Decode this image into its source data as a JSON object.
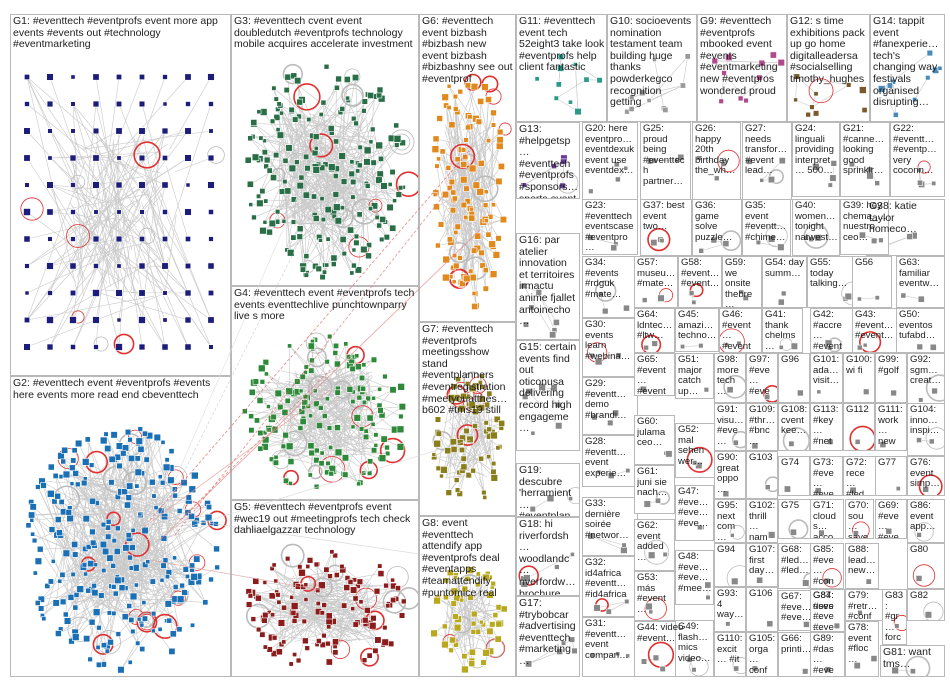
{
  "groups": [
    {
      "id": "G1",
      "label": "G1: #eventtech #eventprofs event more app events #events out #technology #eventmarketing",
      "color": "#1c1c7a"
    },
    {
      "id": "G2",
      "label": "G2: #eventtech event #eventprofs #events here events more read end cbeventtech",
      "color": "#1a6fb5"
    },
    {
      "id": "G3",
      "label": "G3: #eventtech cvent event doubledutch #eventprofs technology mobile acquires accelerate investment",
      "color": "#2a6e48"
    },
    {
      "id": "G4",
      "label": "G4: #eventtech event #eventprofs tech events eventtechlive punchtownparry live s more",
      "color": "#2e8a3a"
    },
    {
      "id": "G5",
      "label": "G5: #eventtech #eventprofs event #wec19 out #meetingprofs tech check dahliaelgazzar technology",
      "color": "#8a1c1c"
    },
    {
      "id": "G6",
      "label": "G6: #eventtech event bizbash #bizbash new event bizbash #bizbashny see out #eventprof",
      "color": "#e08a1e"
    },
    {
      "id": "G7",
      "label": "G7: #eventtech #eventprofs meetingsshow stand #eventplanners #eventregistration #meetyouatthes… b602 #tms19 still",
      "color": "#8a7d1c"
    },
    {
      "id": "G8",
      "label": "G8: event #eventtech attendify app #eventprofs deal #eventapps #teamattendify #puntomice real",
      "color": "#b8a81e"
    },
    {
      "id": "G9",
      "label": "G9: #eventtech #eventprofs mbooked event #events #eventmarketing new #eventpros wondered proud",
      "color": "#b04a8a"
    },
    {
      "id": "G10",
      "label": "G10: socioevents nomination testament team building huge thanks powderkegco recognition getting",
      "color": "#9a9a9a"
    },
    {
      "id": "G11",
      "label": "G11: #eventtech event tech 52eight3 take look #eventprofs help client fantastic",
      "color": "#2a9a8a"
    },
    {
      "id": "G12",
      "label": "G12: s time exhibitions pack up go home digitalleadersa #socialselling timothy_hughes",
      "color": "#7a5a2a"
    },
    {
      "id": "G13",
      "label": "G13: #helpgetsp… #eventtech #eventprofs #sponsors… sports event manage deal…",
      "color": "#6a3a9a"
    },
    {
      "id": "G14",
      "label": "G14: tappit event #fanexperie… tech's changing way festivals organised disrupting…",
      "color": "#4a8ab8"
    },
    {
      "id": "G15",
      "label": "G15: certain events find out oticonusa delivering record high engageme…",
      "color": "#888888"
    },
    {
      "id": "G16",
      "label": "G16: par atelier innovation et territoires irmactu anime fjallet antoinecho…",
      "color": "#888888"
    },
    {
      "id": "G17",
      "label": "G17: #trybobcar #advertising #eventtech #marketing…",
      "color": "#888888"
    },
    {
      "id": "G18",
      "label": "G18: hi riverfordsh… woodlandc… riverfordw… brochure facebook…",
      "color": "#888888"
    },
    {
      "id": "G19",
      "label": "G19: descubre 'herramient… #eventplan… debe…",
      "color": "#888888"
    },
    {
      "id": "G20",
      "label": "G20: here eventpro… eventdexuk event use eventdex…",
      "color": "#888888"
    },
    {
      "id": "G21",
      "label": "G21: #canne… looking good sprinklr…",
      "color": "#888888"
    },
    {
      "id": "G22",
      "label": "G22: #eventt… #eventp… very coconn…",
      "color": "#888888"
    },
    {
      "id": "G23",
      "label": "G23: #eventtech eventscase #eventpro…",
      "color": "#888888"
    },
    {
      "id": "G24",
      "label": "G24: linguali providing interpret… 500…",
      "color": "#888888"
    },
    {
      "id": "G25",
      "label": "G25: proud being #eventtech partner…",
      "color": "#888888"
    },
    {
      "id": "G26",
      "label": "G26: happy 20th birthday the_wh…",
      "color": "#888888"
    },
    {
      "id": "G27",
      "label": "G27: needs transfor… #event lead…",
      "color": "#888888"
    },
    {
      "id": "G28",
      "label": "G28: #eventt… event experie…",
      "color": "#888888"
    },
    {
      "id": "G29",
      "label": "G29: #eventt… demo #brandi…",
      "color": "#888888"
    },
    {
      "id": "G30",
      "label": "G30: events learn #webina…",
      "color": "#888888"
    },
    {
      "id": "G31",
      "label": "G31: #eventt… event compan…",
      "color": "#888888"
    },
    {
      "id": "G32",
      "label": "G32: id4africa #eventt… #id4africa",
      "color": "#888888"
    },
    {
      "id": "G33",
      "label": "G33: dernière soirée #networ…",
      "color": "#888888"
    },
    {
      "id": "G34",
      "label": "G34: #events #rdguk #mate…",
      "color": "#888888"
    },
    {
      "id": "G35",
      "label": "G35: event #eventt… #chime…",
      "color": "#888888"
    },
    {
      "id": "G36",
      "label": "G36: game solve puzzle…",
      "color": "#888888"
    },
    {
      "id": "G37",
      "label": "G37: best event two…",
      "color": "#888888"
    },
    {
      "id": "G38",
      "label": "G38: katie taylor homeco…",
      "color": "#888888"
    },
    {
      "id": "G39",
      "label": "G39: hoy chema_… nuestro ceo…",
      "color": "#888888"
    },
    {
      "id": "G40",
      "label": "G40: women… tonight natwest…",
      "color": "#888888"
    },
    {
      "id": "G41",
      "label": "G41: thank chelms…",
      "color": "#888888"
    },
    {
      "id": "G42",
      "label": "G42: #accre… #event…",
      "color": "#888888"
    },
    {
      "id": "G43",
      "label": "G43: #event… #event…",
      "color": "#888888"
    },
    {
      "id": "G44",
      "label": "G44: video #event…",
      "color": "#888888"
    },
    {
      "id": "G45",
      "label": "G45: amazi… techno…",
      "color": "#888888"
    },
    {
      "id": "G46",
      "label": "G46: #event… #event…",
      "color": "#888888"
    },
    {
      "id": "G47",
      "label": "G47: #eve… #eve… #eve…",
      "color": "#888888"
    },
    {
      "id": "G48",
      "label": "G48: #eve… #eve… #mee…",
      "color": "#888888"
    },
    {
      "id": "G49",
      "label": "G49: flash… mics video…",
      "color": "#888888"
    },
    {
      "id": "G50",
      "label": "G50: eventos tufabd…",
      "color": "#888888"
    },
    {
      "id": "G51",
      "label": "G51: major catch up…",
      "color": "#888888"
    },
    {
      "id": "G52",
      "label": "G52: mal sehen wer…",
      "color": "#888888"
    },
    {
      "id": "G53",
      "label": "G53: más #event…",
      "color": "#888888"
    },
    {
      "id": "G54",
      "label": "G54: day summ…",
      "color": "#888888"
    },
    {
      "id": "G55",
      "label": "G55: today talking…",
      "color": "#888888"
    },
    {
      "id": "G56",
      "label": "G56",
      "color": "#888888"
    },
    {
      "id": "G57",
      "label": "G57: museu… #mate…",
      "color": "#888888"
    },
    {
      "id": "G58",
      "label": "G58: #event… #event…",
      "color": "#888888"
    },
    {
      "id": "G59",
      "label": "G59: we onsite thebre…",
      "color": "#888888"
    },
    {
      "id": "G60",
      "label": "G60: julama ceo…",
      "color": "#888888"
    },
    {
      "id": "G61",
      "label": "G61: juni sie nach…",
      "color": "#888888"
    },
    {
      "id": "G62",
      "label": "G62: event added…",
      "color": "#888888"
    },
    {
      "id": "G63",
      "label": "G63: familiar eventw…",
      "color": "#888888"
    },
    {
      "id": "G64",
      "label": "G64: ldntec… #ltw…",
      "color": "#888888"
    },
    {
      "id": "G65",
      "label": "G65: #event… #event…",
      "color": "#888888"
    },
    {
      "id": "G66",
      "label": "G66: printi…",
      "color": "#888888"
    },
    {
      "id": "G67",
      "label": "G67: #eve… #eve…",
      "color": "#888888"
    },
    {
      "id": "G68",
      "label": "G68: #led… #led…",
      "color": "#888888"
    },
    {
      "id": "G69",
      "label": "G69: #eve… #eve…",
      "color": "#888888"
    },
    {
      "id": "G70",
      "label": "G70: sou… save…",
      "color": "#888888"
    },
    {
      "id": "G71",
      "label": "G71: cloud s… acco…",
      "color": "#888888"
    },
    {
      "id": "G72",
      "label": "G72: rece… #led…",
      "color": "#888888"
    },
    {
      "id": "G73",
      "label": "G73: #eve… #eve…",
      "color": "#888888"
    },
    {
      "id": "G74",
      "label": "G74",
      "color": "#888888"
    },
    {
      "id": "G75",
      "label": "G75",
      "color": "#888888"
    },
    {
      "id": "G76",
      "label": "G76: event simp…",
      "color": "#888888"
    },
    {
      "id": "G77",
      "label": "G77",
      "color": "#888888"
    },
    {
      "id": "G78",
      "label": "G78: event #floc…",
      "color": "#888888"
    },
    {
      "id": "G79",
      "label": "G79: #retr… #conf…",
      "color": "#888888"
    },
    {
      "id": "G80",
      "label": "G80",
      "color": "#888888"
    },
    {
      "id": "G81",
      "label": "G81: want tms…",
      "color": "#888888"
    },
    {
      "id": "G82",
      "label": "G82",
      "color": "#888888"
    },
    {
      "id": "G83",
      "label": "G83: #gr… force driv…",
      "color": "#888888"
    },
    {
      "id": "G84",
      "label": "G84: uses #eve…",
      "color": "#888888"
    },
    {
      "id": "G85",
      "label": "G85: #eve… #con…",
      "color": "#888888"
    },
    {
      "id": "G86",
      "label": "G86: event app…",
      "color": "#888888"
    },
    {
      "id": "G87",
      "label": "G87: #eve… #eve…",
      "color": "#888888"
    },
    {
      "id": "G88",
      "label": "G88: lead… new…",
      "color": "#888888"
    },
    {
      "id": "G89",
      "label": "G89: #das… #eve…",
      "color": "#888888"
    },
    {
      "id": "G90",
      "label": "G90: great oppo…",
      "color": "#888888"
    },
    {
      "id": "G91",
      "label": "G91: visu… #eve…",
      "color": "#888888"
    },
    {
      "id": "G92",
      "label": "G92: sgm… creat…",
      "color": "#888888"
    },
    {
      "id": "G93",
      "label": "G93: 4 way…",
      "color": "#888888"
    },
    {
      "id": "G94",
      "label": "G94",
      "color": "#888888"
    },
    {
      "id": "G95",
      "label": "G95: next com…",
      "color": "#888888"
    },
    {
      "id": "G96",
      "label": "G96",
      "color": "#888888"
    },
    {
      "id": "G97",
      "label": "G97: #eve… #eve…",
      "color": "#888888"
    },
    {
      "id": "G98",
      "label": "G98: more tech…",
      "color": "#888888"
    },
    {
      "id": "G99",
      "label": "G99: #golf",
      "color": "#888888"
    },
    {
      "id": "G100",
      "label": "G100: wi fi",
      "color": "#888888"
    },
    {
      "id": "G101",
      "label": "G101: ada… visit…",
      "color": "#888888"
    },
    {
      "id": "G102",
      "label": "G102: thrill… nam…",
      "color": "#888888"
    },
    {
      "id": "G103",
      "label": "G103",
      "color": "#888888"
    },
    {
      "id": "G104",
      "label": "G104: inno… inspi…",
      "color": "#888888"
    },
    {
      "id": "G105",
      "label": "G105: orga… conf…",
      "color": "#888888"
    },
    {
      "id": "G106",
      "label": "G106",
      "color": "#888888"
    },
    {
      "id": "G107",
      "label": "G107: first day…",
      "color": "#888888"
    },
    {
      "id": "G108",
      "label": "G108: cvent kee…",
      "color": "#888888"
    },
    {
      "id": "G109",
      "label": "G109: #thr… #bnc…",
      "color": "#888888"
    },
    {
      "id": "G110",
      "label": "G110: excit… #it",
      "color": "#888888"
    },
    {
      "id": "G111",
      "label": "G111: work… new…",
      "color": "#888888"
    },
    {
      "id": "G112",
      "label": "G112",
      "color": "#888888"
    },
    {
      "id": "G113",
      "label": "G113: #key… #net…",
      "color": "#888888"
    }
  ]
}
